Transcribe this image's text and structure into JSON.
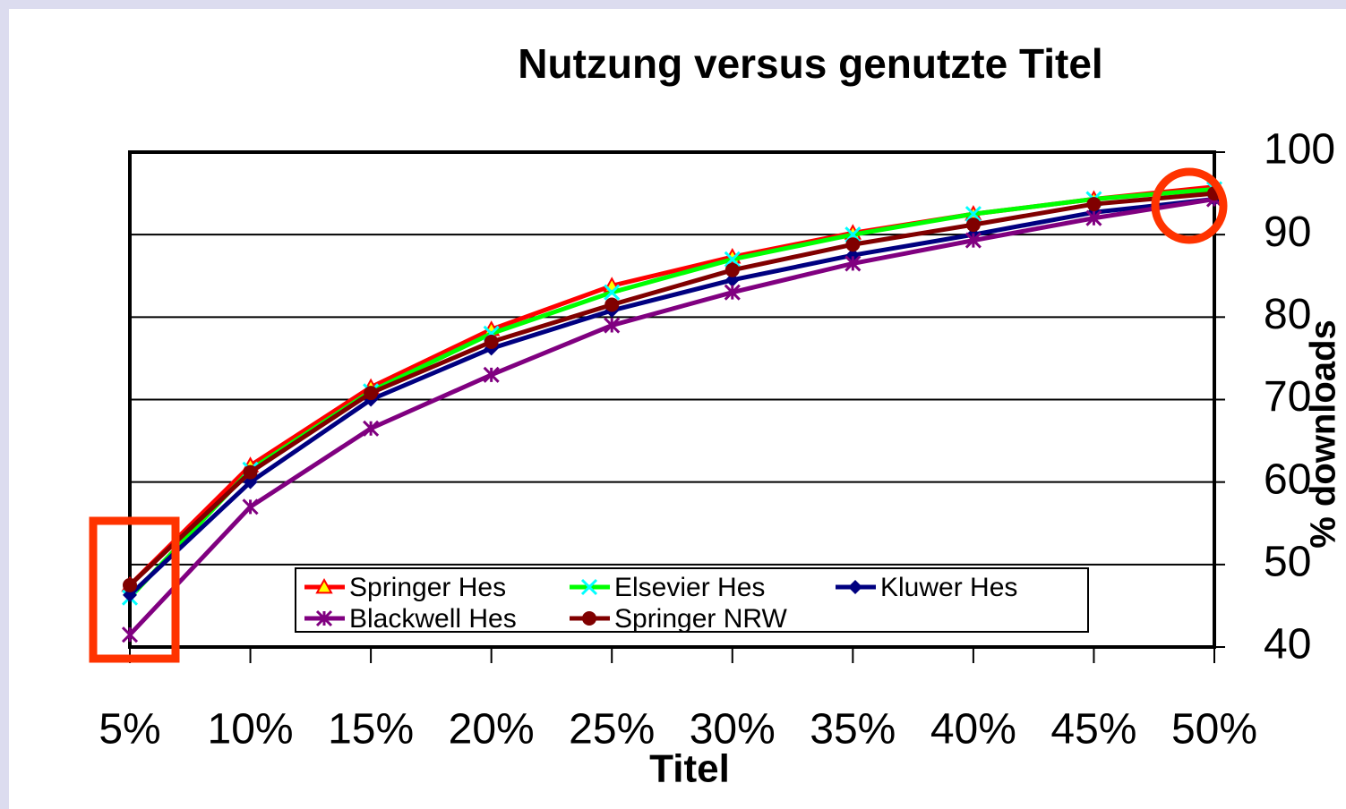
{
  "chart_data": {
    "type": "line",
    "title": "Nutzung versus  genutzte Titel",
    "x_label": "Titel",
    "y_label": "% downloads",
    "categories": [
      "5%",
      "10%",
      "15%",
      "20%",
      "25%",
      "30%",
      "35%",
      "40%",
      "45%",
      "50%"
    ],
    "ylim": [
      40,
      100
    ],
    "yticks": [
      40,
      50,
      60,
      70,
      80,
      90,
      100
    ],
    "grid": true,
    "y_axis_side": "right",
    "legend": "bottom",
    "series": [
      {
        "name": "Springer Hes",
        "color": "#ff0000",
        "marker": "triangle",
        "marker_color": "#ffff00",
        "values": [
          47.5,
          62,
          71.5,
          78.5,
          83.8,
          87.3,
          90.2,
          92.5,
          94.3,
          95.8
        ]
      },
      {
        "name": "Elsevier Hes",
        "color": "#00ff00",
        "marker": "x",
        "marker_color": "#00ffff",
        "values": [
          46,
          61.5,
          71,
          78,
          83,
          87,
          90,
          92.5,
          94.3,
          95.5
        ]
      },
      {
        "name": "Kluwer Hes",
        "color": "#000080",
        "marker": "diamond",
        "marker_color": "#000080",
        "values": [
          46.3,
          60,
          70,
          76.2,
          80.8,
          84.5,
          87.5,
          90,
          92.7,
          94.3
        ]
      },
      {
        "name": "Blackwell Hes",
        "color": "#800080",
        "marker": "asterisk",
        "marker_color": "#800080",
        "values": [
          41.5,
          57,
          66.5,
          73,
          79,
          83,
          86.5,
          89.3,
          92,
          94.3
        ]
      },
      {
        "name": "Springer NRW",
        "color": "#800000",
        "marker": "circle",
        "marker_color": "#800000",
        "values": [
          47.5,
          61.2,
          70.8,
          77,
          81.5,
          85.7,
          88.8,
          91.2,
          93.7,
          95
        ]
      }
    ]
  }
}
